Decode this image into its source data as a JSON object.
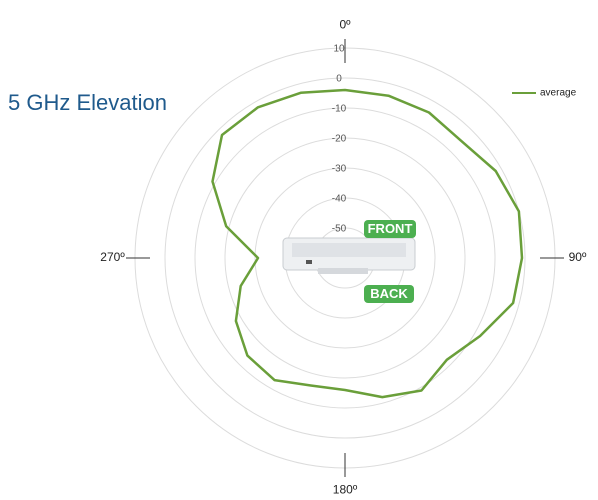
{
  "chart_data": {
    "type": "polar",
    "title": "5 GHz Elevation",
    "x": [
      0,
      15,
      30,
      45,
      60,
      75,
      90,
      105,
      120,
      135,
      150,
      165,
      180,
      195,
      210,
      225,
      240,
      255,
      270,
      285,
      300,
      315,
      330,
      345
    ],
    "series": [
      {
        "name": "average",
        "color": "#6a9f3a",
        "values": [
          -4,
          -4,
          -4,
          -5,
          -2,
          0,
          -1,
          -2,
          -8,
          -12,
          -9,
          -12,
          -16,
          -16,
          -13,
          -14,
          -18,
          -24,
          -31,
          -19,
          -9,
          -2,
          -2,
          -3
        ]
      }
    ],
    "xlim": [
      0,
      360
    ],
    "xticks": [
      {
        "value": 0,
        "label": "0º"
      },
      {
        "value": 90,
        "label": "90º"
      },
      {
        "value": 180,
        "label": "180º"
      },
      {
        "value": 270,
        "label": "270º"
      }
    ],
    "ylim": [
      -60,
      10
    ],
    "yticks": [
      10,
      0,
      -10,
      -20,
      -30,
      -40,
      -50
    ],
    "grid": true,
    "legend": "top-right",
    "annotations": [
      "FRONT",
      "BACK"
    ]
  }
}
